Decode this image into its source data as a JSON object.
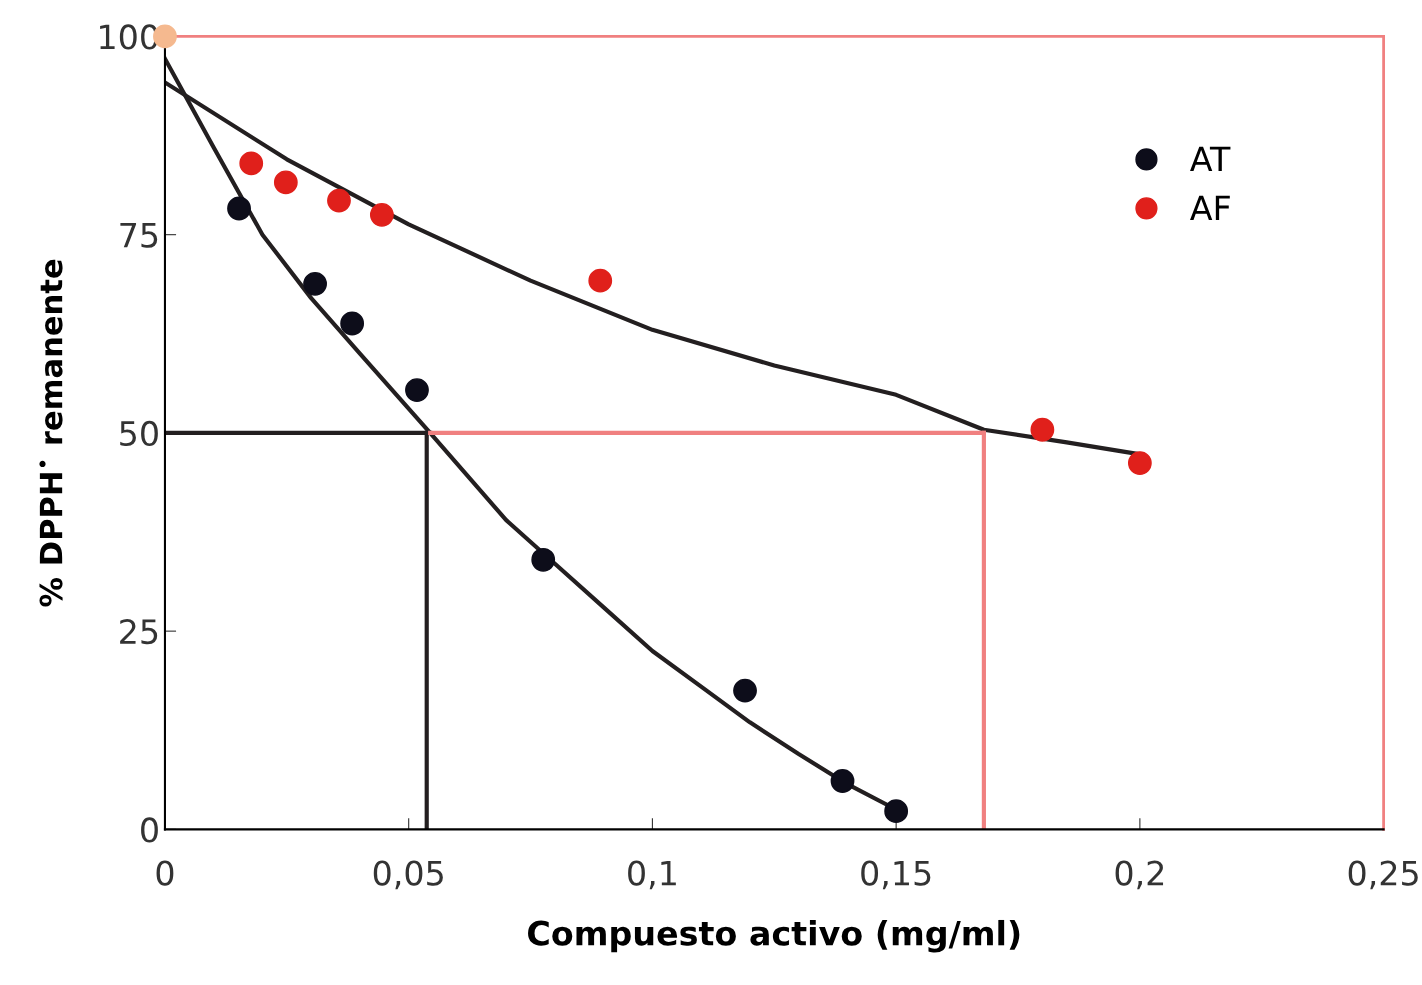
{
  "chart_data": {
    "type": "scatter",
    "xlabel": "Compuesto activo (mg/ml)",
    "ylabel": "% DPPH$^{•}$ remanente",
    "xlim": [
      0,
      0.25
    ],
    "ylim": [
      0,
      100
    ],
    "xticks": [
      {
        "value": 0,
        "label": "0"
      },
      {
        "value": 0.05,
        "label": "0,05"
      },
      {
        "value": 0.1,
        "label": "0,1"
      },
      {
        "value": 0.15,
        "label": "0,15"
      },
      {
        "value": 0.2,
        "label": "0,2"
      },
      {
        "value": 0.25,
        "label": "0,25"
      }
    ],
    "yticks": [
      0,
      25,
      50,
      75,
      100
    ],
    "grid": false,
    "legend": "top right",
    "marker": "circle",
    "series": [
      {
        "type": "line",
        "marker": "none",
        "color": "#231f20",
        "x": [
          0,
          0.01,
          0.02,
          0.03,
          0.04,
          0.0544,
          0.07,
          0.08,
          0.09,
          0.1,
          0.11,
          0.12,
          0.13,
          0.14,
          0.15
        ],
        "values": [
          97.2,
          86,
          75,
          67,
          60,
          50,
          39,
          33.5,
          28,
          22.5,
          18,
          13.5,
          9.5,
          5.7,
          2.5
        ]
      },
      {
        "type": "line",
        "marker": "none",
        "color": "#231f20",
        "x": [
          0,
          0.025,
          0.05,
          0.075,
          0.1,
          0.125,
          0.15,
          0.168,
          0.185,
          0.2
        ],
        "values": [
          94.2,
          84.5,
          76.3,
          69.2,
          63,
          58.5,
          54.8,
          50.4,
          48.8,
          47.3
        ]
      },
      {
        "type": "line",
        "marker": "none",
        "color": "#231f20",
        "x": [
          0,
          0.0544
        ],
        "values": [
          50,
          50
        ]
      },
      {
        "type": "line",
        "marker": "none",
        "color": "#231f20",
        "x": [
          0.0537,
          0.0537
        ],
        "values": [
          50,
          0
        ]
      },
      {
        "type": "line",
        "marker": "none",
        "color": "#f08080",
        "x": [
          0.0544,
          0.168
        ],
        "values": [
          50,
          50
        ]
      },
      {
        "type": "line",
        "marker": "none",
        "color": "#f08080",
        "x": [
          0.168,
          0.168
        ],
        "values": [
          50,
          0
        ]
      },
      {
        "color": "#f5b98f",
        "x": [
          0
        ],
        "values": [
          100
        ]
      },
      {
        "name": "AT",
        "color": "#0d0d1a",
        "x": [
          0.0152,
          0.0308,
          0.0384,
          0.0517,
          0.0776,
          0.119,
          0.139,
          0.15
        ],
        "values": [
          78.3,
          68.8,
          63.8,
          55.4,
          34.0,
          17.5,
          6.1,
          2.3
        ]
      },
      {
        "name": "AF",
        "color": "#e0201b",
        "x": [
          0.0177,
          0.0248,
          0.0357,
          0.0445,
          0.0893,
          0.18,
          0.2
        ],
        "values": [
          84.0,
          81.6,
          79.3,
          77.5,
          69.2,
          50.4,
          46.2
        ]
      }
    ]
  }
}
